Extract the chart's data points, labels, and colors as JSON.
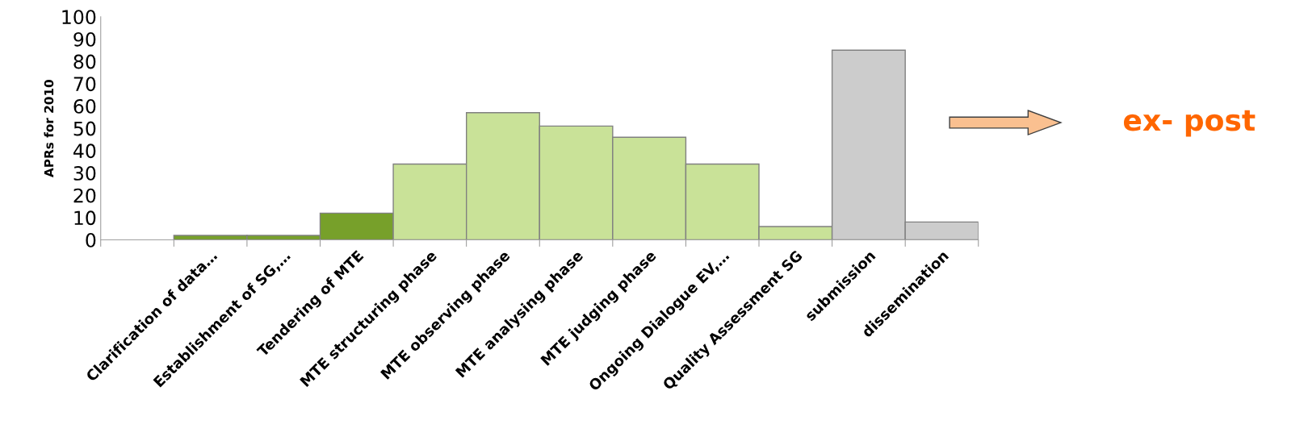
{
  "chart_data": {
    "type": "bar",
    "ylabel": "APRs for 2010",
    "categories": [
      null,
      "Clarification of data…",
      "Establishment of SG,…",
      "Tendering of MTE",
      "MTE structuring phase",
      "MTE observing phase",
      "MTE analysing phase",
      "MTE judging phase",
      "Ongoing Dialogue EV,…",
      "Quality Assessment SG",
      "submission",
      "dissemination"
    ],
    "values": [
      null,
      2,
      2,
      12,
      34,
      57,
      51,
      46,
      34,
      6,
      85,
      8
    ],
    "colors": [
      "#77a02a",
      "#77a02a",
      "#77a02a",
      "#77a02a",
      "#c9e298",
      "#c9e298",
      "#c9e298",
      "#c9e298",
      "#c9e298",
      "#c9e298",
      "#cccccc",
      "#cccccc"
    ],
    "ylim": [
      0,
      100
    ],
    "yticks": [
      0,
      10,
      20,
      30,
      40,
      50,
      60,
      70,
      80,
      90,
      100
    ],
    "grid": false,
    "annotations": [
      "ex- post"
    ]
  }
}
